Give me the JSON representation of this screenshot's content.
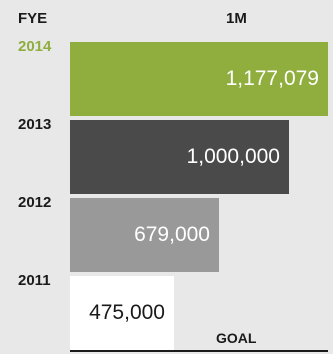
{
  "chart_data": {
    "type": "bar",
    "orientation": "horizontal",
    "column_header_year": "FYE",
    "column_header_target": "1M",
    "goal_label": "GOAL",
    "goal_value": 1000000,
    "categories": [
      "2014",
      "2013",
      "2012",
      "2011"
    ],
    "values": [
      1177079,
      1000000,
      679000,
      475000
    ],
    "value_labels": [
      "1,177,079",
      "1,000,000",
      "679,000",
      "475,000"
    ],
    "colors": [
      "#8fae3e",
      "#4a4a4a",
      "#999999",
      "#ffffff"
    ],
    "label_colors": [
      "#ffffff",
      "#ffffff",
      "#ffffff",
      "#1a1a1a"
    ],
    "year_colors": [
      "#8fae3e",
      "#1a1a1a",
      "#1a1a1a",
      "#1a1a1a"
    ],
    "background": "#e8e8e8"
  }
}
